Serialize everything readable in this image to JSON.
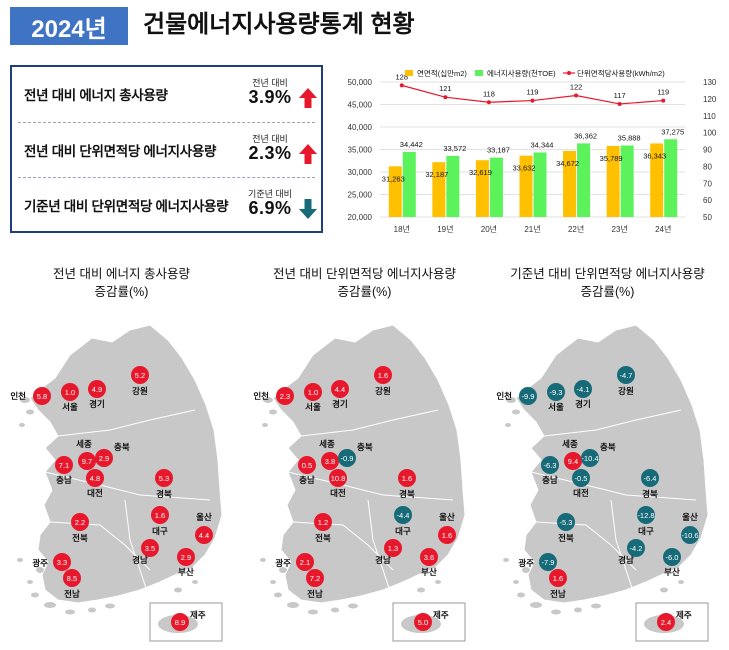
{
  "header": {
    "year_badge": "2024년",
    "title": "건물에너지사용량통계 현황"
  },
  "summary": [
    {
      "label": "전년 대비 에너지 총사용량",
      "sub": "전년 대비",
      "value": "3.9%",
      "direction": "up"
    },
    {
      "label": "전년 대비 단위면적당 에너지사용량",
      "sub": "전년 대비",
      "value": "2.3%",
      "direction": "up"
    },
    {
      "label": "기준년 대비 단위면적당 에너지사용량",
      "sub": "기준년 대비",
      "value": "6.9%",
      "direction": "down"
    }
  ],
  "colors": {
    "title_badge": "#3f73c4",
    "bar_area": "#ffc000",
    "bar_energy": "#5cf25c",
    "line": "#e8182c",
    "up": "#e8182c",
    "down": "#176b79",
    "map_land": "#c8c8c8"
  },
  "chart_data": [
    {
      "type": "bar+line",
      "categories": [
        "18년",
        "19년",
        "20년",
        "21년",
        "22년",
        "23년",
        "24년"
      ],
      "series": [
        {
          "name": "연면적(십만m2)",
          "type": "bar",
          "axis": "left",
          "values": [
            31263,
            32187,
            32619,
            33632,
            34672,
            35789,
            36343
          ]
        },
        {
          "name": "에너지사용량(천TOE)",
          "type": "bar",
          "axis": "left",
          "values": [
            34442,
            33572,
            33187,
            34344,
            36362,
            35888,
            37275
          ]
        },
        {
          "name": "단위면적당사용량(kWh/m2)",
          "type": "line",
          "axis": "right",
          "values": [
            128,
            121,
            118,
            119,
            122,
            117,
            119
          ]
        }
      ],
      "ylim_left": [
        20000,
        50000
      ],
      "yticks_left": [
        "20,000",
        "25,000",
        "30,000",
        "35,000",
        "40,000",
        "45,000",
        "50,000"
      ],
      "ylim_right": [
        50,
        130
      ],
      "yticks_right": [
        "50",
        "60",
        "70",
        "80",
        "90",
        "100",
        "110",
        "120",
        "130"
      ],
      "legend_position": "top"
    },
    {
      "type": "map",
      "title": "전년 대비 에너지 총사용량\n증감률(%)",
      "title_lines": [
        "전년 대비 에너지 총사용량",
        "증감률(%)"
      ],
      "regions": [
        {
          "name": "인천",
          "value": 5.8
        },
        {
          "name": "서울",
          "value": 1.0
        },
        {
          "name": "경기",
          "value": 4.9
        },
        {
          "name": "강원",
          "value": 5.2
        },
        {
          "name": "세종",
          "value": 9.7
        },
        {
          "name": "충북",
          "value": 2.9
        },
        {
          "name": "충남",
          "value": 7.1
        },
        {
          "name": "대전",
          "value": 4.8
        },
        {
          "name": "경북",
          "value": 5.3
        },
        {
          "name": "대구",
          "value": 1.6
        },
        {
          "name": "울산",
          "value": 4.4
        },
        {
          "name": "전북",
          "value": 2.2
        },
        {
          "name": "경남",
          "value": 3.5
        },
        {
          "name": "부산",
          "value": 2.9
        },
        {
          "name": "광주",
          "value": 3.3
        },
        {
          "name": "전남",
          "value": 8.5
        },
        {
          "name": "제주",
          "value": 8.9
        }
      ]
    },
    {
      "type": "map",
      "title": "전년 대비 단위면적당 에너지사용량\n증감률(%)",
      "title_lines": [
        "전년 대비 단위면적당 에너지사용량",
        "증감률(%)"
      ],
      "regions": [
        {
          "name": "인천",
          "value": 2.3
        },
        {
          "name": "서울",
          "value": 1.0
        },
        {
          "name": "경기",
          "value": 4.4
        },
        {
          "name": "강원",
          "value": 1.6
        },
        {
          "name": "세종",
          "value": 3.8
        },
        {
          "name": "충북",
          "value": -0.9
        },
        {
          "name": "충남",
          "value": 0.5
        },
        {
          "name": "대전",
          "value": 10.8
        },
        {
          "name": "경북",
          "value": 1.6
        },
        {
          "name": "대구",
          "value": -4.4
        },
        {
          "name": "울산",
          "value": 1.6
        },
        {
          "name": "전북",
          "value": 1.2
        },
        {
          "name": "경남",
          "value": 1.3
        },
        {
          "name": "부산",
          "value": 3.6
        },
        {
          "name": "광주",
          "value": 2.1
        },
        {
          "name": "전남",
          "value": 7.2
        },
        {
          "name": "제주",
          "value": 5.0
        }
      ]
    },
    {
      "type": "map",
      "title": "기준년 대비 단위면적당 에너지사용량\n증감률(%)",
      "title_lines": [
        "기준년 대비 단위면적당 에너지사용량",
        "증감률(%)"
      ],
      "regions": [
        {
          "name": "인천",
          "value": -9.9
        },
        {
          "name": "서울",
          "value": -9.3
        },
        {
          "name": "경기",
          "value": -4.1
        },
        {
          "name": "강원",
          "value": -4.7
        },
        {
          "name": "세종",
          "value": 9.4
        },
        {
          "name": "충북",
          "value": -10.4
        },
        {
          "name": "충남",
          "value": -6.3
        },
        {
          "name": "대전",
          "value": -0.5
        },
        {
          "name": "경북",
          "value": -6.4
        },
        {
          "name": "대구",
          "value": -12.8
        },
        {
          "name": "울산",
          "value": -10.6
        },
        {
          "name": "전북",
          "value": -5.3
        },
        {
          "name": "경남",
          "value": -4.2
        },
        {
          "name": "부산",
          "value": -6.0
        },
        {
          "name": "광주",
          "value": -7.9
        },
        {
          "name": "전남",
          "value": 1.6
        },
        {
          "name": "제주",
          "value": 2.4
        }
      ]
    }
  ]
}
